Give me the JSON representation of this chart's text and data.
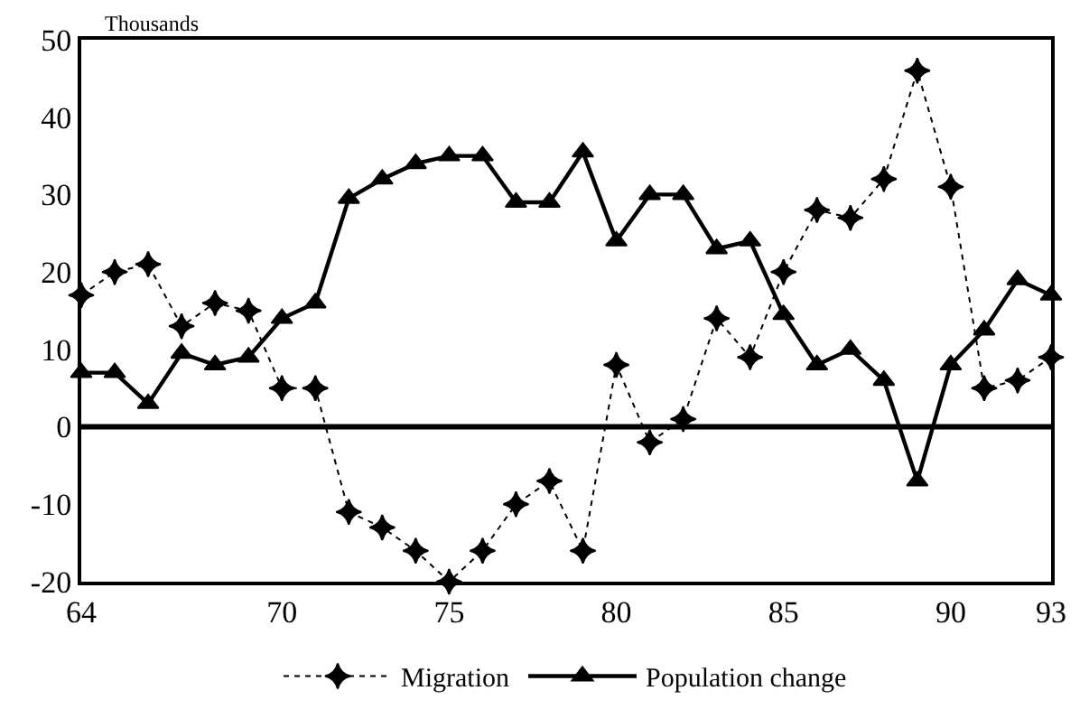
{
  "chart_data": {
    "type": "line",
    "ylabel": "Thousands",
    "x": [
      64,
      65,
      66,
      67,
      68,
      69,
      70,
      71,
      72,
      73,
      74,
      75,
      76,
      77,
      78,
      79,
      80,
      81,
      82,
      83,
      84,
      85,
      86,
      87,
      88,
      89,
      90,
      91,
      92,
      93
    ],
    "series": [
      {
        "name": "Migration",
        "color": "#000000",
        "marker": "star",
        "line_style": "dotted",
        "values": [
          17,
          20,
          21,
          13,
          16,
          15,
          5,
          5,
          -11,
          -13,
          -16,
          -20,
          -16,
          -10,
          -7,
          -16,
          8,
          -2,
          1,
          14,
          9,
          20,
          28,
          27,
          32,
          46,
          31,
          5,
          6,
          9
        ]
      },
      {
        "name": "Population change",
        "color": "#000000",
        "marker": "triangle",
        "line_style": "solid",
        "values": [
          7,
          7,
          3,
          9.5,
          8,
          9,
          14,
          16,
          29.5,
          32,
          34,
          35,
          35,
          29,
          29,
          35.5,
          24,
          30,
          30,
          23,
          24,
          14.5,
          8,
          10,
          6,
          -7,
          8,
          12.5,
          19,
          17
        ]
      }
    ],
    "xlim": [
      64,
      93
    ],
    "xticks": [
      64,
      70,
      75,
      80,
      85,
      90,
      93
    ],
    "ylim": [
      -20,
      50
    ],
    "yticks": [
      -20,
      -10,
      0,
      10,
      20,
      30,
      40,
      50
    ],
    "ref_lines": [
      {
        "axis": "y",
        "value": 0,
        "color": "#000000",
        "line_style": "solid"
      }
    ],
    "grid": false,
    "legend": "bottom"
  }
}
